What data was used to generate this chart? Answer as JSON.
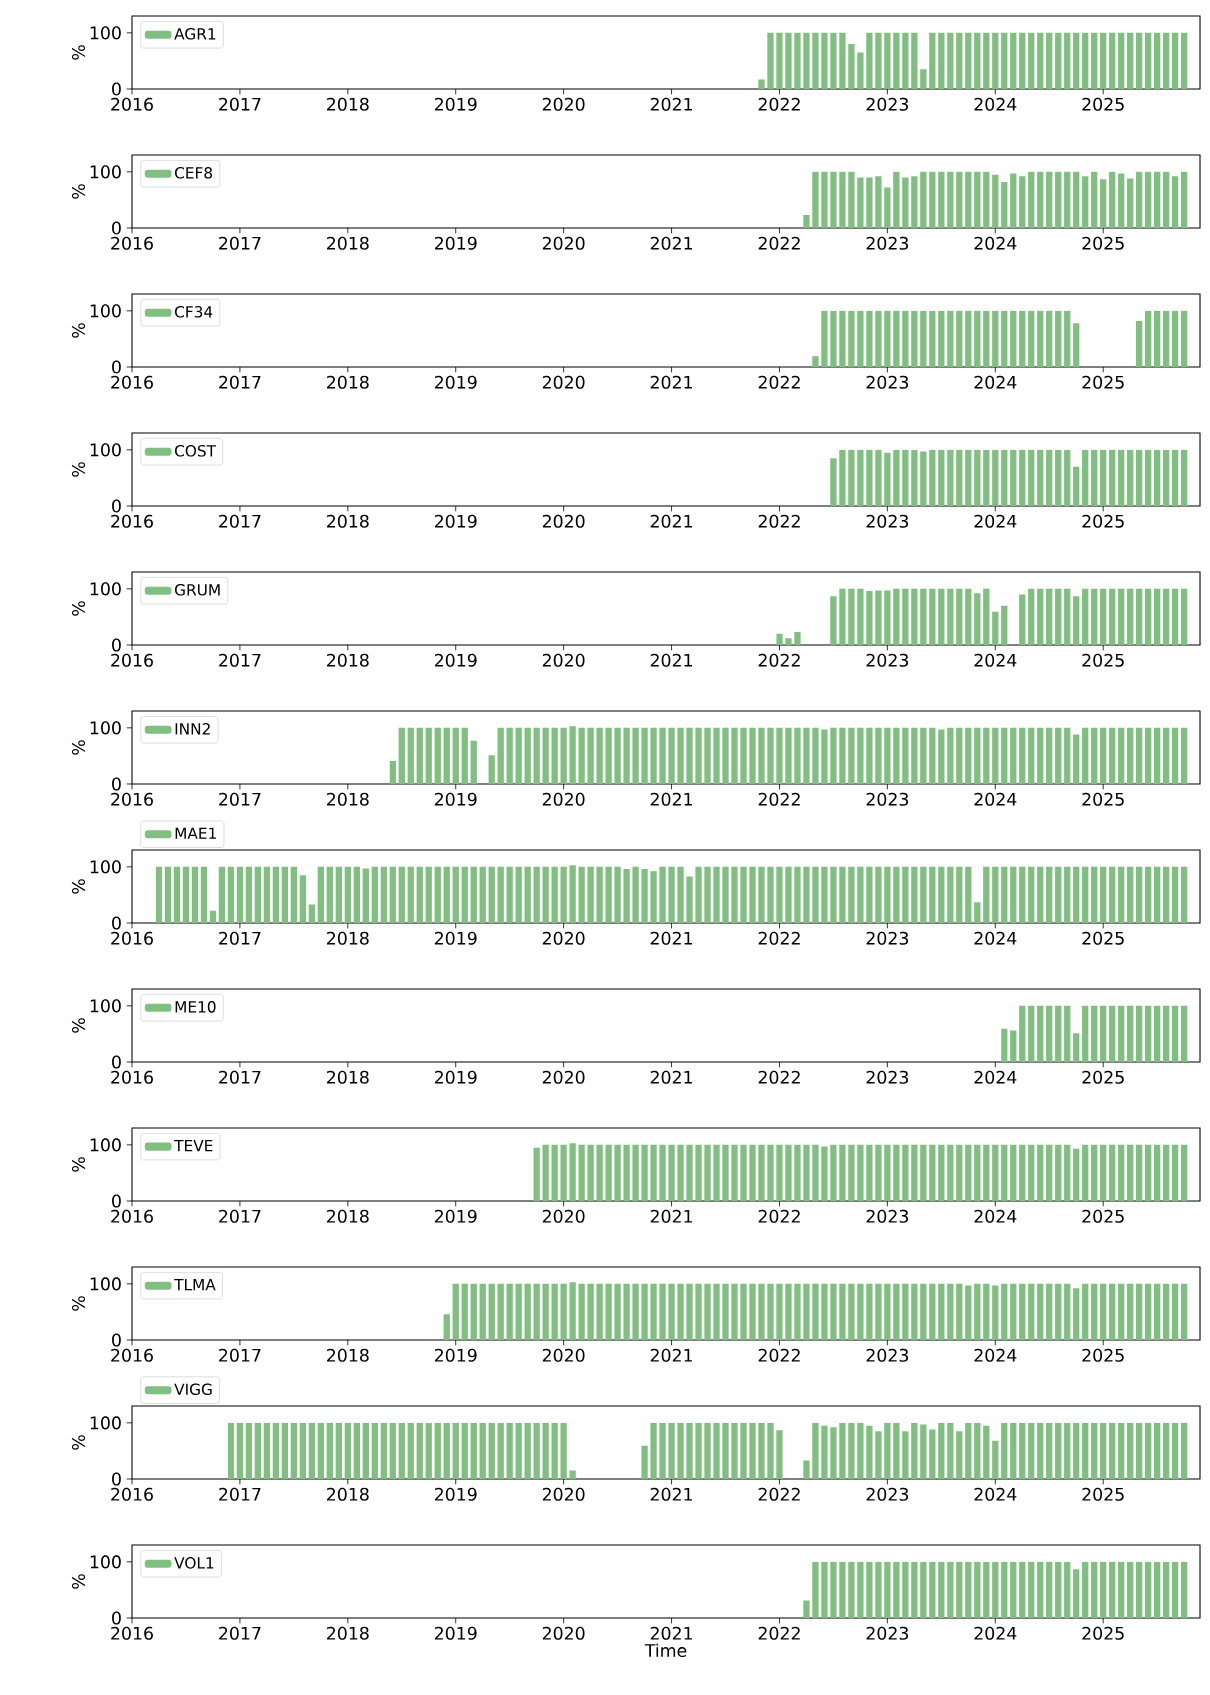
{
  "chart_data": [
    {
      "type": "bar",
      "ylabel": "%",
      "legend": "top left",
      "xlim": [
        "2016-01-01",
        "2025-11-24"
      ],
      "ylim": [
        0,
        130
      ],
      "yticks": [
        0,
        100
      ],
      "xticks": [
        "2016",
        "2017",
        "2018",
        "2019",
        "2020",
        "2021",
        "2022",
        "2023",
        "2024",
        "2025"
      ],
      "x": [
        "2021-11",
        "2021-12",
        "2022-01",
        "2022-02",
        "2022-03",
        "2022-04",
        "2022-05",
        "2022-06",
        "2022-07",
        "2022-08",
        "2022-09",
        "2022-10",
        "2022-11",
        "2022-12",
        "2023-01",
        "2023-02",
        "2023-03",
        "2023-04",
        "2023-05",
        "2023-06",
        "2023-07",
        "2023-08",
        "2023-09",
        "2023-10",
        "2023-11",
        "2023-12",
        "2024-01",
        "2024-02",
        "2024-03",
        "2024-04",
        "2024-05",
        "2024-06",
        "2024-07",
        "2024-08",
        "2024-09",
        "2024-10",
        "2024-11",
        "2024-12",
        "2025-01",
        "2025-02",
        "2025-03",
        "2025-04",
        "2025-05",
        "2025-06",
        "2025-07",
        "2025-08",
        "2025-09",
        "2025-10"
      ],
      "series": [
        {
          "name": "AGR1",
          "color": "#80bf80",
          "values": [
            17,
            100,
            100,
            100,
            100,
            100,
            100,
            100,
            100,
            100,
            80,
            65,
            100,
            100,
            100,
            100,
            100,
            100,
            35,
            100,
            100,
            100,
            100,
            100,
            100,
            100,
            100,
            100,
            100,
            100,
            100,
            100,
            100,
            100,
            100,
            100,
            100,
            100,
            100,
            100,
            100,
            100,
            100,
            100,
            100,
            100,
            100,
            100
          ]
        }
      ]
    },
    {
      "type": "bar",
      "ylabel": "%",
      "legend": "top left",
      "xlim": [
        "2016-01-01",
        "2025-11-24"
      ],
      "ylim": [
        0,
        130
      ],
      "yticks": [
        0,
        100
      ],
      "xticks": [
        "2016",
        "2017",
        "2018",
        "2019",
        "2020",
        "2021",
        "2022",
        "2023",
        "2024",
        "2025"
      ],
      "x": [
        "2022-04",
        "2022-05",
        "2022-06",
        "2022-07",
        "2022-08",
        "2022-09",
        "2022-10",
        "2022-11",
        "2022-12",
        "2023-01",
        "2023-02",
        "2023-03",
        "2023-04",
        "2023-05",
        "2023-06",
        "2023-07",
        "2023-08",
        "2023-09",
        "2023-10",
        "2023-11",
        "2023-12",
        "2024-01",
        "2024-02",
        "2024-03",
        "2024-04",
        "2024-05",
        "2024-06",
        "2024-07",
        "2024-08",
        "2024-09",
        "2024-10",
        "2024-11",
        "2024-12",
        "2025-01",
        "2025-02",
        "2025-03",
        "2025-04",
        "2025-05",
        "2025-06",
        "2025-07",
        "2025-08",
        "2025-09",
        "2025-10"
      ],
      "series": [
        {
          "name": "CEF8",
          "color": "#80bf80",
          "values": [
            23,
            100,
            100,
            100,
            100,
            100,
            90,
            90,
            92,
            72,
            100,
            90,
            92,
            100,
            100,
            100,
            100,
            100,
            100,
            100,
            100,
            95,
            82,
            97,
            92,
            100,
            100,
            100,
            100,
            100,
            100,
            92,
            100,
            87,
            100,
            97,
            88,
            100,
            100,
            100,
            100,
            92,
            100
          ]
        }
      ]
    },
    {
      "type": "bar",
      "ylabel": "%",
      "legend": "top left",
      "xlim": [
        "2016-01-01",
        "2025-11-24"
      ],
      "ylim": [
        0,
        130
      ],
      "yticks": [
        0,
        100
      ],
      "xticks": [
        "2016",
        "2017",
        "2018",
        "2019",
        "2020",
        "2021",
        "2022",
        "2023",
        "2024",
        "2025"
      ],
      "x": [
        "2022-05",
        "2022-06",
        "2022-07",
        "2022-08",
        "2022-09",
        "2022-10",
        "2022-11",
        "2022-12",
        "2023-01",
        "2023-02",
        "2023-03",
        "2023-04",
        "2023-05",
        "2023-06",
        "2023-07",
        "2023-08",
        "2023-09",
        "2023-10",
        "2023-11",
        "2023-12",
        "2024-01",
        "2024-02",
        "2024-03",
        "2024-04",
        "2024-05",
        "2024-06",
        "2024-07",
        "2024-08",
        "2024-09",
        "2024-10",
        "2024-11",
        "2024-12",
        "2025-01",
        "2025-02",
        "2025-03",
        "2025-04",
        "2025-05",
        "2025-06",
        "2025-07",
        "2025-08",
        "2025-09",
        "2025-10"
      ],
      "series": [
        {
          "name": "CF34",
          "color": "#80bf80",
          "values": [
            19,
            100,
            100,
            100,
            100,
            100,
            100,
            100,
            100,
            100,
            100,
            100,
            100,
            100,
            100,
            100,
            100,
            100,
            100,
            100,
            100,
            100,
            100,
            100,
            100,
            100,
            100,
            100,
            100,
            78,
            null,
            null,
            null,
            null,
            null,
            null,
            82,
            100,
            100,
            100,
            100,
            100
          ]
        }
      ]
    },
    {
      "type": "bar",
      "ylabel": "%",
      "legend": "top left",
      "xlim": [
        "2016-01-01",
        "2025-11-24"
      ],
      "ylim": [
        0,
        130
      ],
      "yticks": [
        0,
        100
      ],
      "xticks": [
        "2016",
        "2017",
        "2018",
        "2019",
        "2020",
        "2021",
        "2022",
        "2023",
        "2024",
        "2025"
      ],
      "x": [
        "2022-07",
        "2022-08",
        "2022-09",
        "2022-10",
        "2022-11",
        "2022-12",
        "2023-01",
        "2023-02",
        "2023-03",
        "2023-04",
        "2023-05",
        "2023-06",
        "2023-07",
        "2023-08",
        "2023-09",
        "2023-10",
        "2023-11",
        "2023-12",
        "2024-01",
        "2024-02",
        "2024-03",
        "2024-04",
        "2024-05",
        "2024-06",
        "2024-07",
        "2024-08",
        "2024-09",
        "2024-10",
        "2024-11",
        "2024-12",
        "2025-01",
        "2025-02",
        "2025-03",
        "2025-04",
        "2025-05",
        "2025-06",
        "2025-07",
        "2025-08",
        "2025-09",
        "2025-10"
      ],
      "series": [
        {
          "name": "COST",
          "color": "#80bf80",
          "values": [
            85,
            100,
            100,
            100,
            100,
            100,
            95,
            100,
            100,
            100,
            97,
            100,
            100,
            100,
            100,
            100,
            100,
            100,
            100,
            100,
            100,
            100,
            100,
            100,
            100,
            100,
            100,
            70,
            100,
            100,
            100,
            100,
            100,
            100,
            100,
            100,
            100,
            100,
            100,
            100
          ]
        }
      ]
    },
    {
      "type": "bar",
      "ylabel": "%",
      "legend": "top left",
      "xlim": [
        "2016-01-01",
        "2025-11-24"
      ],
      "ylim": [
        0,
        130
      ],
      "yticks": [
        0,
        100
      ],
      "xticks": [
        "2016",
        "2017",
        "2018",
        "2019",
        "2020",
        "2021",
        "2022",
        "2023",
        "2024",
        "2025"
      ],
      "x": [
        "2022-01",
        "2022-02",
        "2022-03",
        "2022-04",
        "2022-05",
        "2022-06",
        "2022-07",
        "2022-08",
        "2022-09",
        "2022-10",
        "2022-11",
        "2022-12",
        "2023-01",
        "2023-02",
        "2023-03",
        "2023-04",
        "2023-05",
        "2023-06",
        "2023-07",
        "2023-08",
        "2023-09",
        "2023-10",
        "2023-11",
        "2023-12",
        "2024-01",
        "2024-02",
        "2024-03",
        "2024-04",
        "2024-05",
        "2024-06",
        "2024-07",
        "2024-08",
        "2024-09",
        "2024-10",
        "2024-11",
        "2024-12",
        "2025-01",
        "2025-02",
        "2025-03",
        "2025-04",
        "2025-05",
        "2025-06",
        "2025-07",
        "2025-08",
        "2025-09",
        "2025-10"
      ],
      "series": [
        {
          "name": "GRUM",
          "color": "#80bf80",
          "values": [
            20,
            12,
            23,
            null,
            null,
            null,
            87,
            100,
            100,
            100,
            96,
            97,
            97,
            100,
            100,
            100,
            100,
            100,
            100,
            100,
            100,
            100,
            92,
            100,
            59,
            70,
            null,
            90,
            100,
            100,
            100,
            100,
            100,
            87,
            100,
            100,
            100,
            100,
            100,
            100,
            100,
            100,
            100,
            100,
            100,
            100
          ]
        }
      ]
    },
    {
      "type": "bar",
      "ylabel": "%",
      "legend": "top left",
      "xlim": [
        "2016-01-01",
        "2025-11-24"
      ],
      "ylim": [
        0,
        130
      ],
      "yticks": [
        0,
        100
      ],
      "xticks": [
        "2016",
        "2017",
        "2018",
        "2019",
        "2020",
        "2021",
        "2022",
        "2023",
        "2024",
        "2025"
      ],
      "x": [
        "2018-06",
        "2018-07",
        "2018-08",
        "2018-09",
        "2018-10",
        "2018-11",
        "2018-12",
        "2019-01",
        "2019-02",
        "2019-03",
        "2019-04",
        "2019-05",
        "2019-06",
        "2019-07",
        "2019-08",
        "2019-09",
        "2019-10",
        "2019-11",
        "2019-12",
        "2020-01",
        "2020-02",
        "2020-03",
        "2020-04",
        "2020-05",
        "2020-06",
        "2020-07",
        "2020-08",
        "2020-09",
        "2020-10",
        "2020-11",
        "2020-12",
        "2021-01",
        "2021-02",
        "2021-03",
        "2021-04",
        "2021-05",
        "2021-06",
        "2021-07",
        "2021-08",
        "2021-09",
        "2021-10",
        "2021-11",
        "2021-12",
        "2022-01",
        "2022-02",
        "2022-03",
        "2022-04",
        "2022-05",
        "2022-06",
        "2022-07",
        "2022-08",
        "2022-09",
        "2022-10",
        "2022-11",
        "2022-12",
        "2023-01",
        "2023-02",
        "2023-03",
        "2023-04",
        "2023-05",
        "2023-06",
        "2023-07",
        "2023-08",
        "2023-09",
        "2023-10",
        "2023-11",
        "2023-12",
        "2024-01",
        "2024-02",
        "2024-03",
        "2024-04",
        "2024-05",
        "2024-06",
        "2024-07",
        "2024-08",
        "2024-09",
        "2024-10",
        "2024-11",
        "2024-12",
        "2025-01",
        "2025-02",
        "2025-03",
        "2025-04",
        "2025-05",
        "2025-06",
        "2025-07",
        "2025-08",
        "2025-09",
        "2025-10"
      ],
      "series": [
        {
          "name": "INN2",
          "color": "#80bf80",
          "values": [
            41,
            100,
            100,
            100,
            100,
            100,
            100,
            100,
            100,
            77,
            null,
            51,
            100,
            100,
            100,
            100,
            100,
            100,
            100,
            100,
            103,
            100,
            100,
            100,
            100,
            100,
            100,
            100,
            100,
            100,
            100,
            100,
            100,
            100,
            100,
            100,
            100,
            100,
            100,
            100,
            100,
            100,
            100,
            100,
            100,
            100,
            100,
            100,
            97,
            100,
            100,
            100,
            100,
            100,
            100,
            100,
            100,
            100,
            100,
            100,
            100,
            97,
            100,
            100,
            100,
            100,
            100,
            100,
            100,
            100,
            100,
            100,
            100,
            100,
            100,
            100,
            88,
            100,
            100,
            100,
            100,
            100,
            100,
            100,
            100,
            100,
            100,
            100,
            100
          ]
        }
      ]
    },
    {
      "type": "bar",
      "ylabel": "%",
      "legend": "top left",
      "xlim": [
        "2016-01-01",
        "2025-11-24"
      ],
      "ylim": [
        0,
        130
      ],
      "yticks": [
        0,
        100
      ],
      "xticks": [
        "2016",
        "2017",
        "2018",
        "2019",
        "2020",
        "2021",
        "2022",
        "2023",
        "2024",
        "2025"
      ],
      "x": [
        "2016-04",
        "2016-05",
        "2016-06",
        "2016-07",
        "2016-08",
        "2016-09",
        "2016-10",
        "2016-11",
        "2016-12",
        "2017-01",
        "2017-02",
        "2017-03",
        "2017-04",
        "2017-05",
        "2017-06",
        "2017-07",
        "2017-08",
        "2017-09",
        "2017-10",
        "2017-11",
        "2017-12",
        "2018-01",
        "2018-02",
        "2018-03",
        "2018-04",
        "2018-05",
        "2018-06",
        "2018-07",
        "2018-08",
        "2018-09",
        "2018-10",
        "2018-11",
        "2018-12",
        "2019-01",
        "2019-02",
        "2019-03",
        "2019-04",
        "2019-05",
        "2019-06",
        "2019-07",
        "2019-08",
        "2019-09",
        "2019-10",
        "2019-11",
        "2019-12",
        "2020-01",
        "2020-02",
        "2020-03",
        "2020-04",
        "2020-05",
        "2020-06",
        "2020-07",
        "2020-08",
        "2020-09",
        "2020-10",
        "2020-11",
        "2020-12",
        "2021-01",
        "2021-02",
        "2021-03",
        "2021-04",
        "2021-05",
        "2021-06",
        "2021-07",
        "2021-08",
        "2021-09",
        "2021-10",
        "2021-11",
        "2021-12",
        "2022-01",
        "2022-02",
        "2022-03",
        "2022-04",
        "2022-05",
        "2022-06",
        "2022-07",
        "2022-08",
        "2022-09",
        "2022-10",
        "2022-11",
        "2022-12",
        "2023-01",
        "2023-02",
        "2023-03",
        "2023-04",
        "2023-05",
        "2023-06",
        "2023-07",
        "2023-08",
        "2023-09",
        "2023-10",
        "2023-11",
        "2023-12",
        "2024-01",
        "2024-02",
        "2024-03",
        "2024-04",
        "2024-05",
        "2024-06",
        "2024-07",
        "2024-08",
        "2024-09",
        "2024-10",
        "2024-11",
        "2024-12",
        "2025-01",
        "2025-02",
        "2025-03",
        "2025-04",
        "2025-05",
        "2025-06",
        "2025-07",
        "2025-08",
        "2025-09",
        "2025-10"
      ],
      "series": [
        {
          "name": "MAE1",
          "color": "#80bf80",
          "values": [
            100,
            100,
            100,
            100,
            100,
            100,
            22,
            100,
            100,
            100,
            100,
            100,
            100,
            100,
            100,
            100,
            85,
            33,
            100,
            100,
            100,
            100,
            100,
            97,
            100,
            100,
            100,
            100,
            100,
            100,
            100,
            100,
            100,
            100,
            100,
            100,
            100,
            100,
            100,
            100,
            100,
            100,
            100,
            100,
            100,
            100,
            103,
            100,
            100,
            100,
            100,
            100,
            96,
            100,
            96,
            92,
            100,
            100,
            100,
            83,
            100,
            100,
            100,
            100,
            100,
            100,
            100,
            100,
            100,
            100,
            100,
            100,
            100,
            100,
            100,
            100,
            100,
            100,
            100,
            100,
            100,
            100,
            100,
            100,
            100,
            100,
            100,
            100,
            100,
            100,
            100,
            37,
            100,
            100,
            100,
            100,
            100,
            100,
            100,
            100,
            100,
            100,
            100,
            100,
            100,
            100,
            100,
            100,
            100,
            100,
            100,
            100,
            100,
            100,
            100
          ]
        }
      ]
    },
    {
      "type": "bar",
      "ylabel": "%",
      "legend": "top left",
      "xlim": [
        "2016-01-01",
        "2025-11-24"
      ],
      "ylim": [
        0,
        130
      ],
      "yticks": [
        0,
        100
      ],
      "xticks": [
        "2016",
        "2017",
        "2018",
        "2019",
        "2020",
        "2021",
        "2022",
        "2023",
        "2024",
        "2025"
      ],
      "x": [
        "2024-02",
        "2024-03",
        "2024-04",
        "2024-05",
        "2024-06",
        "2024-07",
        "2024-08",
        "2024-09",
        "2024-10",
        "2024-11",
        "2024-12",
        "2025-01",
        "2025-02",
        "2025-03",
        "2025-04",
        "2025-05",
        "2025-06",
        "2025-07",
        "2025-08",
        "2025-09",
        "2025-10"
      ],
      "series": [
        {
          "name": "ME10",
          "color": "#80bf80",
          "values": [
            59,
            56,
            100,
            100,
            100,
            100,
            100,
            100,
            51,
            100,
            100,
            100,
            100,
            100,
            100,
            100,
            100,
            100,
            100,
            100,
            100
          ]
        }
      ]
    },
    {
      "type": "bar",
      "ylabel": "%",
      "legend": "top left",
      "xlim": [
        "2016-01-01",
        "2025-11-24"
      ],
      "ylim": [
        0,
        130
      ],
      "yticks": [
        0,
        100
      ],
      "xticks": [
        "2016",
        "2017",
        "2018",
        "2019",
        "2020",
        "2021",
        "2022",
        "2023",
        "2024",
        "2025"
      ],
      "x": [
        "2019-10",
        "2019-11",
        "2019-12",
        "2020-01",
        "2020-02",
        "2020-03",
        "2020-04",
        "2020-05",
        "2020-06",
        "2020-07",
        "2020-08",
        "2020-09",
        "2020-10",
        "2020-11",
        "2020-12",
        "2021-01",
        "2021-02",
        "2021-03",
        "2021-04",
        "2021-05",
        "2021-06",
        "2021-07",
        "2021-08",
        "2021-09",
        "2021-10",
        "2021-11",
        "2021-12",
        "2022-01",
        "2022-02",
        "2022-03",
        "2022-04",
        "2022-05",
        "2022-06",
        "2022-07",
        "2022-08",
        "2022-09",
        "2022-10",
        "2022-11",
        "2022-12",
        "2023-01",
        "2023-02",
        "2023-03",
        "2023-04",
        "2023-05",
        "2023-06",
        "2023-07",
        "2023-08",
        "2023-09",
        "2023-10",
        "2023-11",
        "2023-12",
        "2024-01",
        "2024-02",
        "2024-03",
        "2024-04",
        "2024-05",
        "2024-06",
        "2024-07",
        "2024-08",
        "2024-09",
        "2024-10",
        "2024-11",
        "2024-12",
        "2025-01",
        "2025-02",
        "2025-03",
        "2025-04",
        "2025-05",
        "2025-06",
        "2025-07",
        "2025-08",
        "2025-09",
        "2025-10"
      ],
      "series": [
        {
          "name": "TEVE",
          "color": "#80bf80",
          "values": [
            95,
            100,
            100,
            100,
            103,
            100,
            100,
            100,
            100,
            100,
            100,
            100,
            100,
            100,
            100,
            100,
            100,
            100,
            100,
            100,
            100,
            100,
            100,
            100,
            100,
            100,
            100,
            100,
            100,
            100,
            100,
            100,
            97,
            100,
            100,
            100,
            100,
            100,
            100,
            100,
            100,
            100,
            100,
            100,
            100,
            100,
            100,
            100,
            100,
            100,
            100,
            100,
            100,
            100,
            100,
            100,
            100,
            100,
            100,
            100,
            93,
            100,
            100,
            100,
            100,
            100,
            100,
            100,
            100,
            100,
            100,
            100,
            100
          ]
        }
      ]
    },
    {
      "type": "bar",
      "ylabel": "%",
      "legend": "top left",
      "xlim": [
        "2016-01-01",
        "2025-11-24"
      ],
      "ylim": [
        0,
        130
      ],
      "yticks": [
        0,
        100
      ],
      "xticks": [
        "2016",
        "2017",
        "2018",
        "2019",
        "2020",
        "2021",
        "2022",
        "2023",
        "2024",
        "2025"
      ],
      "x": [
        "2018-12",
        "2019-01",
        "2019-02",
        "2019-03",
        "2019-04",
        "2019-05",
        "2019-06",
        "2019-07",
        "2019-08",
        "2019-09",
        "2019-10",
        "2019-11",
        "2019-12",
        "2020-01",
        "2020-02",
        "2020-03",
        "2020-04",
        "2020-05",
        "2020-06",
        "2020-07",
        "2020-08",
        "2020-09",
        "2020-10",
        "2020-11",
        "2020-12",
        "2021-01",
        "2021-02",
        "2021-03",
        "2021-04",
        "2021-05",
        "2021-06",
        "2021-07",
        "2021-08",
        "2021-09",
        "2021-10",
        "2021-11",
        "2021-12",
        "2022-01",
        "2022-02",
        "2022-03",
        "2022-04",
        "2022-05",
        "2022-06",
        "2022-07",
        "2022-08",
        "2022-09",
        "2022-10",
        "2022-11",
        "2022-12",
        "2023-01",
        "2023-02",
        "2023-03",
        "2023-04",
        "2023-05",
        "2023-06",
        "2023-07",
        "2023-08",
        "2023-09",
        "2023-10",
        "2023-11",
        "2023-12",
        "2024-01",
        "2024-02",
        "2024-03",
        "2024-04",
        "2024-05",
        "2024-06",
        "2024-07",
        "2024-08",
        "2024-09",
        "2024-10",
        "2024-11",
        "2024-12",
        "2025-01",
        "2025-02",
        "2025-03",
        "2025-04",
        "2025-05",
        "2025-06",
        "2025-07",
        "2025-08",
        "2025-09",
        "2025-10"
      ],
      "series": [
        {
          "name": "TLMA",
          "color": "#80bf80",
          "values": [
            46,
            100,
            100,
            100,
            100,
            100,
            100,
            100,
            100,
            100,
            100,
            100,
            100,
            100,
            103,
            100,
            100,
            100,
            100,
            100,
            100,
            100,
            100,
            100,
            100,
            100,
            100,
            100,
            100,
            100,
            100,
            100,
            100,
            100,
            100,
            100,
            100,
            100,
            100,
            100,
            100,
            100,
            100,
            100,
            100,
            100,
            100,
            100,
            100,
            100,
            100,
            100,
            100,
            100,
            100,
            100,
            100,
            100,
            97,
            100,
            100,
            97,
            100,
            100,
            100,
            100,
            100,
            100,
            100,
            100,
            92,
            100,
            100,
            100,
            100,
            100,
            100,
            100,
            100,
            100,
            100,
            100,
            100
          ]
        }
      ]
    },
    {
      "type": "bar",
      "ylabel": "%",
      "legend": "top left",
      "xlim": [
        "2016-01-01",
        "2025-11-24"
      ],
      "ylim": [
        0,
        130
      ],
      "yticks": [
        0,
        100
      ],
      "xticks": [
        "2016",
        "2017",
        "2018",
        "2019",
        "2020",
        "2021",
        "2022",
        "2023",
        "2024",
        "2025"
      ],
      "x": [
        "2016-12",
        "2017-01",
        "2017-02",
        "2017-03",
        "2017-04",
        "2017-05",
        "2017-06",
        "2017-07",
        "2017-08",
        "2017-09",
        "2017-10",
        "2017-11",
        "2017-12",
        "2018-01",
        "2018-02",
        "2018-03",
        "2018-04",
        "2018-05",
        "2018-06",
        "2018-07",
        "2018-08",
        "2018-09",
        "2018-10",
        "2018-11",
        "2018-12",
        "2019-01",
        "2019-02",
        "2019-03",
        "2019-04",
        "2019-05",
        "2019-06",
        "2019-07",
        "2019-08",
        "2019-09",
        "2019-10",
        "2019-11",
        "2019-12",
        "2020-01",
        "2020-02",
        "2020-03",
        "2020-04",
        "2020-05",
        "2020-06",
        "2020-07",
        "2020-08",
        "2020-09",
        "2020-10",
        "2020-11",
        "2020-12",
        "2021-01",
        "2021-02",
        "2021-03",
        "2021-04",
        "2021-05",
        "2021-06",
        "2021-07",
        "2021-08",
        "2021-09",
        "2021-10",
        "2021-11",
        "2021-12",
        "2022-01",
        "2022-02",
        "2022-03",
        "2022-04",
        "2022-05",
        "2022-06",
        "2022-07",
        "2022-08",
        "2022-09",
        "2022-10",
        "2022-11",
        "2022-12",
        "2023-01",
        "2023-02",
        "2023-03",
        "2023-04",
        "2023-05",
        "2023-06",
        "2023-07",
        "2023-08",
        "2023-09",
        "2023-10",
        "2023-11",
        "2023-12",
        "2024-01",
        "2024-02",
        "2024-03",
        "2024-04",
        "2024-05",
        "2024-06",
        "2024-07",
        "2024-08",
        "2024-09",
        "2024-10",
        "2024-11",
        "2024-12",
        "2025-01",
        "2025-02",
        "2025-03",
        "2025-04",
        "2025-05",
        "2025-06",
        "2025-07",
        "2025-08",
        "2025-09",
        "2025-10"
      ],
      "series": [
        {
          "name": "VIGG",
          "color": "#80bf80",
          "values": [
            100,
            100,
            100,
            100,
            100,
            100,
            100,
            100,
            100,
            100,
            100,
            100,
            100,
            100,
            100,
            100,
            100,
            100,
            100,
            100,
            100,
            100,
            100,
            100,
            100,
            100,
            100,
            100,
            100,
            100,
            100,
            100,
            100,
            100,
            100,
            100,
            100,
            100,
            15,
            null,
            null,
            null,
            null,
            null,
            null,
            null,
            59,
            100,
            100,
            100,
            100,
            100,
            100,
            100,
            100,
            100,
            100,
            100,
            100,
            100,
            100,
            87,
            null,
            null,
            33,
            100,
            95,
            92,
            100,
            100,
            100,
            95,
            85,
            100,
            100,
            85,
            100,
            97,
            88,
            100,
            100,
            85,
            100,
            100,
            95,
            68,
            100,
            100,
            100,
            100,
            100,
            100,
            100,
            100,
            100,
            100,
            100,
            100,
            100,
            100,
            100,
            100,
            100,
            100,
            100,
            100,
            100
          ]
        }
      ]
    },
    {
      "type": "bar",
      "ylabel": "%",
      "xlabel": "Time",
      "legend": "top left",
      "xlim": [
        "2016-01-01",
        "2025-11-24"
      ],
      "ylim": [
        0,
        130
      ],
      "yticks": [
        0,
        100
      ],
      "xticks": [
        "2016",
        "2017",
        "2018",
        "2019",
        "2020",
        "2021",
        "2022",
        "2023",
        "2024",
        "2025"
      ],
      "x": [
        "2022-04",
        "2022-05",
        "2022-06",
        "2022-07",
        "2022-08",
        "2022-09",
        "2022-10",
        "2022-11",
        "2022-12",
        "2023-01",
        "2023-02",
        "2023-03",
        "2023-04",
        "2023-05",
        "2023-06",
        "2023-07",
        "2023-08",
        "2023-09",
        "2023-10",
        "2023-11",
        "2023-12",
        "2024-01",
        "2024-02",
        "2024-03",
        "2024-04",
        "2024-05",
        "2024-06",
        "2024-07",
        "2024-08",
        "2024-09",
        "2024-10",
        "2024-11",
        "2024-12",
        "2025-01",
        "2025-02",
        "2025-03",
        "2025-04",
        "2025-05",
        "2025-06",
        "2025-07",
        "2025-08",
        "2025-09",
        "2025-10"
      ],
      "series": [
        {
          "name": "VOL1",
          "color": "#80bf80",
          "values": [
            31,
            100,
            100,
            100,
            100,
            100,
            100,
            100,
            100,
            100,
            100,
            100,
            100,
            100,
            100,
            100,
            100,
            100,
            100,
            100,
            100,
            100,
            100,
            100,
            100,
            100,
            100,
            100,
            100,
            100,
            87,
            100,
            100,
            100,
            100,
            100,
            100,
            100,
            100,
            100,
            100,
            100,
            100
          ]
        }
      ]
    }
  ]
}
